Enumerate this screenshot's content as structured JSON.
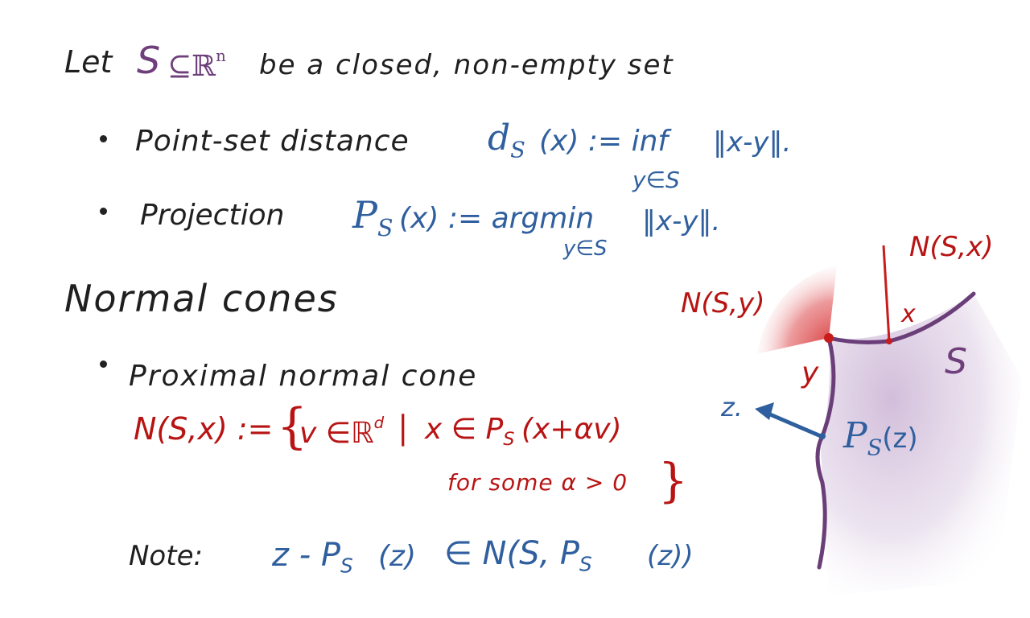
{
  "intro": {
    "let": "Let",
    "set_symbol": "S",
    "subset": "⊆ℝ",
    "dim": "n",
    "rest": "be a closed, non-empty set"
  },
  "point_set_distance": {
    "label": "Point-set distance",
    "d": "d",
    "sub": "S",
    "def": "(x) := inf",
    "under": "y∈S",
    "norm": "‖x-y‖."
  },
  "projection": {
    "label": "Projection",
    "p": "P",
    "sub": "S",
    "def": "(x) :=  argmin",
    "under": "y∈S",
    "norm": "‖x-y‖."
  },
  "heading": "Normal cones",
  "proximal": {
    "label": "Proximal normal cone",
    "lhs": "N(S,x) := ",
    "brace_open": "{",
    "v": "v ∈ℝ",
    "d": "d",
    "bar": "|",
    "x_in": "x ∈ P",
    "sub": "S",
    "arg": "(x+αv)",
    "condition": "for some  α > 0",
    "brace_close": "}"
  },
  "note": {
    "label": "Note:",
    "z": "z - P",
    "sub": "S",
    "zarg": "(z)",
    "in": "∈ N(S, P",
    "sub2": "S",
    "tail": "(z))"
  },
  "diagram": {
    "cone_y_label": "N(S,y)",
    "cone_x_label": "N(S,x)",
    "x_label": "x",
    "y_label": "y",
    "s_label": "S",
    "z_label": "z.",
    "p_label": "P",
    "p_sub": "S",
    "p_arg": "(z)",
    "colors": {
      "set": "#6a3e78",
      "cone": "#c81c1c",
      "arrow": "#2f5f9e",
      "fill": "#cdb6d6"
    }
  }
}
